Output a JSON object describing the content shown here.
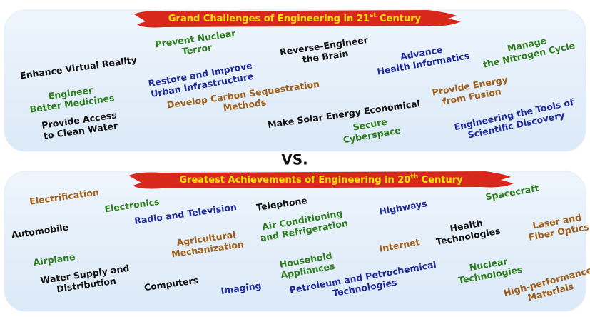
{
  "top": {
    "title": {
      "main": "Grand Challenges of Engineering in 21",
      "sup": "st",
      "tail": " Century"
    },
    "items": [
      {
        "lines": [
          "Enhance Virtual Reality"
        ],
        "color": "#111111"
      },
      {
        "lines": [
          "Prevent Nuclear",
          "Terror"
        ],
        "color": "#2e7d1e"
      },
      {
        "lines": [
          "Reverse-Engineer",
          "the Brain"
        ],
        "color": "#111111"
      },
      {
        "lines": [
          "Advance",
          "Health Informatics"
        ],
        "color": "#1f2a9c"
      },
      {
        "lines": [
          "Manage",
          "the Nitrogen Cycle"
        ],
        "color": "#2e7d1e"
      },
      {
        "lines": [
          "Engineer",
          "Better Medicines"
        ],
        "color": "#2e7d1e"
      },
      {
        "lines": [
          "Restore and Improve",
          "Urban Infrastructure"
        ],
        "color": "#1f2a9c"
      },
      {
        "lines": [
          "Develop Carbon Sequestration",
          "Methods"
        ],
        "color": "#a0601a"
      },
      {
        "lines": [
          "Make Solar Energy Economical"
        ],
        "color": "#111111"
      },
      {
        "lines": [
          "Provide Energy",
          "from Fusion"
        ],
        "color": "#a0601a"
      },
      {
        "lines": [
          "Provide Access",
          "to Clean Water"
        ],
        "color": "#111111"
      },
      {
        "lines": [
          "Secure",
          "Cyberspace"
        ],
        "color": "#2e7d1e"
      },
      {
        "lines": [
          "Engineering the Tools of",
          "Scientific Discovery"
        ],
        "color": "#1f2a9c"
      }
    ]
  },
  "vs": "VS.",
  "bottom": {
    "title": {
      "main": "Greatest Achievements of Engineering in 20",
      "sup": "th",
      "tail": " Century"
    },
    "items": [
      {
        "lines": [
          "Electrification"
        ],
        "color": "#a0601a"
      },
      {
        "lines": [
          "Electronics"
        ],
        "color": "#2e7d1e"
      },
      {
        "lines": [
          "Automobile"
        ],
        "color": "#111111"
      },
      {
        "lines": [
          "Radio and Television"
        ],
        "color": "#1f2a9c"
      },
      {
        "lines": [
          "Telephone"
        ],
        "color": "#111111"
      },
      {
        "lines": [
          "Air Conditioning",
          "and Refrigeration"
        ],
        "color": "#2e7d1e"
      },
      {
        "lines": [
          "Highways"
        ],
        "color": "#1f2a9c"
      },
      {
        "lines": [
          "Spacecraft"
        ],
        "color": "#2e7d1e"
      },
      {
        "lines": [
          "Agricultural",
          "Mechanization"
        ],
        "color": "#a0601a"
      },
      {
        "lines": [
          "Health",
          "Technologies"
        ],
        "color": "#111111"
      },
      {
        "lines": [
          "Laser and",
          "Fiber Optics"
        ],
        "color": "#a0601a"
      },
      {
        "lines": [
          "Airplane"
        ],
        "color": "#2e7d1e"
      },
      {
        "lines": [
          "Internet"
        ],
        "color": "#a0601a"
      },
      {
        "lines": [
          "Household",
          "Appliances"
        ],
        "color": "#2e7d1e"
      },
      {
        "lines": [
          "Water Supply and",
          "Distribution"
        ],
        "color": "#111111"
      },
      {
        "lines": [
          "Computers"
        ],
        "color": "#111111"
      },
      {
        "lines": [
          "Imaging"
        ],
        "color": "#1f2a9c"
      },
      {
        "lines": [
          "Petroleum and Petrochemical",
          "Technologies"
        ],
        "color": "#1f2a9c"
      },
      {
        "lines": [
          "Nuclear",
          "Technologies"
        ],
        "color": "#2e7d1e"
      },
      {
        "lines": [
          "High-performance",
          "Materials"
        ],
        "color": "#a0601a"
      }
    ]
  }
}
